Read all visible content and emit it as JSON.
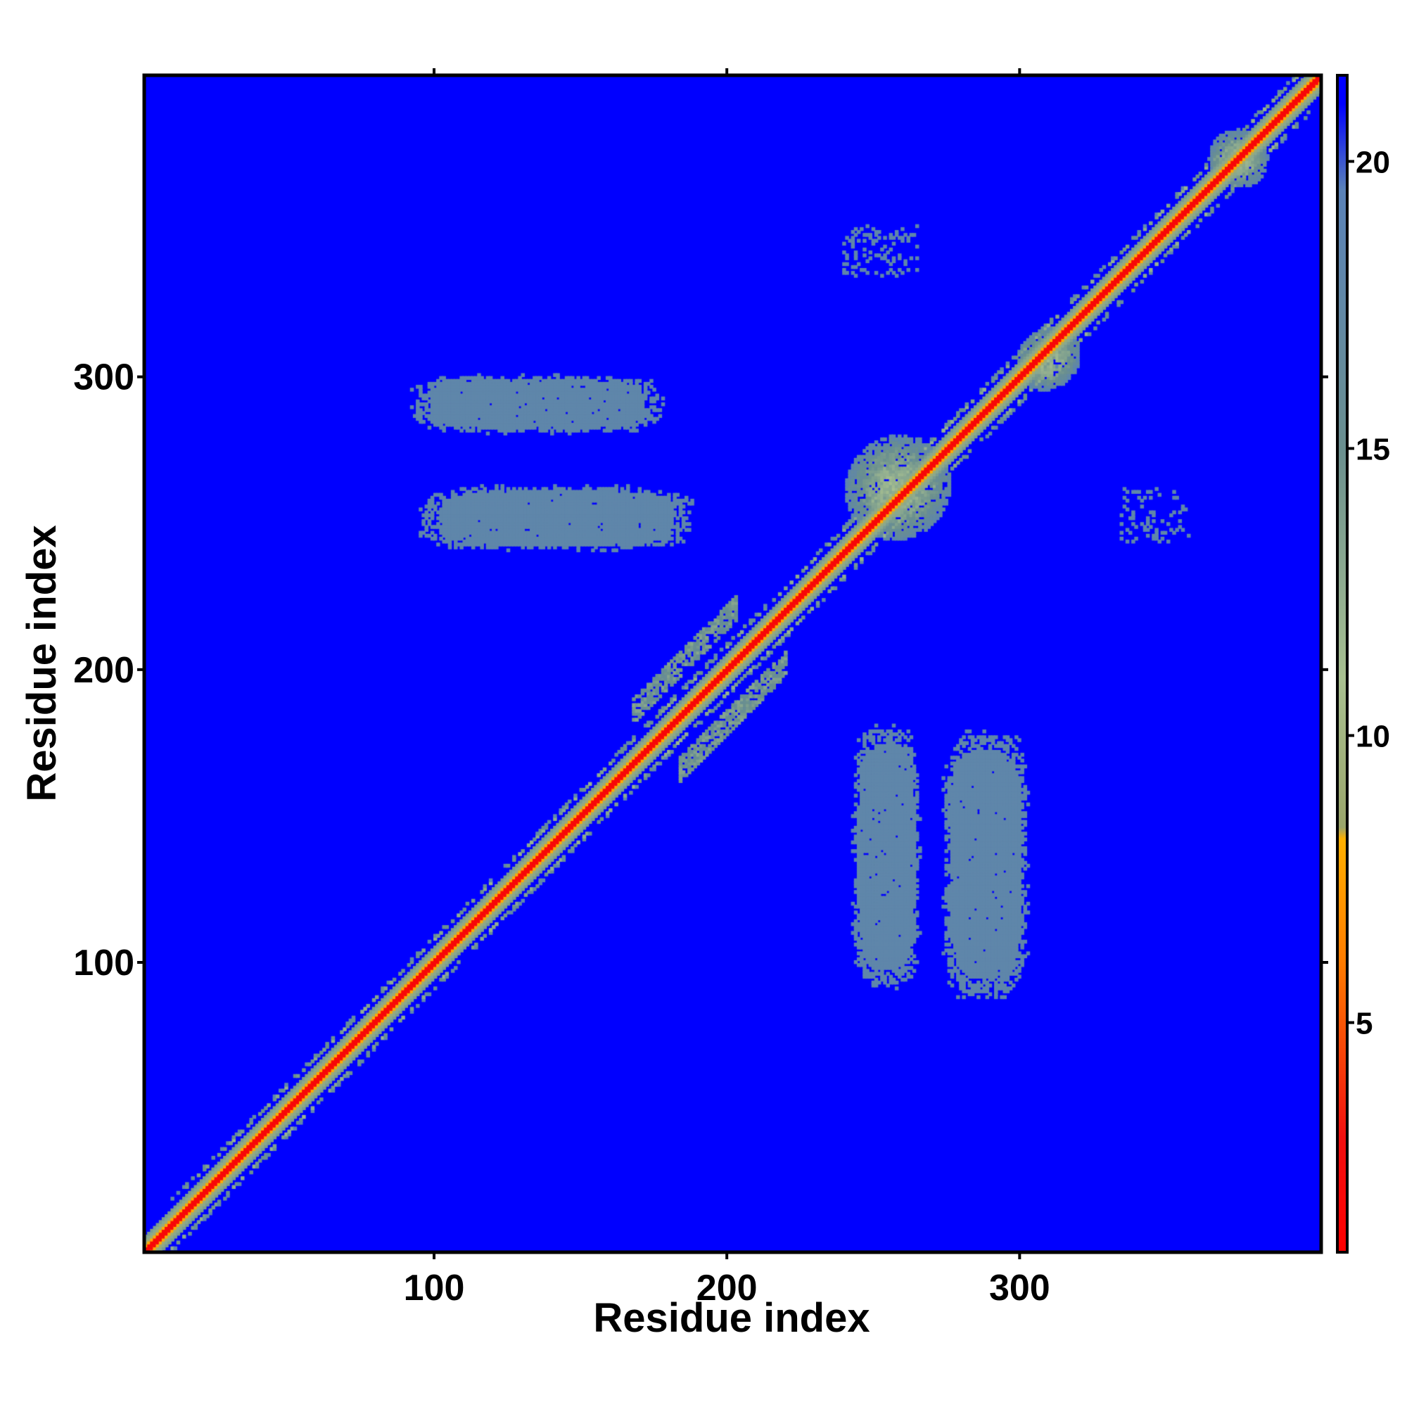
{
  "chart_data": {
    "type": "heatmap",
    "title": "",
    "xlabel": "Residue index",
    "ylabel": "Residue index",
    "xlim": [
      1,
      403
    ],
    "ylim": [
      1,
      403
    ],
    "x_ticks": [
      100,
      200,
      300
    ],
    "y_ticks": [
      100,
      200,
      300
    ],
    "x_tick_labels": [
      "100",
      "200",
      "300"
    ],
    "y_tick_labels": [
      "100",
      "200",
      "300"
    ],
    "grid": false,
    "legend": "colorbar right",
    "colorbar": {
      "min": 1,
      "max": 21.5,
      "ticks": [
        5,
        10,
        15,
        20
      ],
      "tick_labels": [
        "5",
        "10",
        "15",
        "20"
      ],
      "stops": [
        {
          "value": 1,
          "color": "#ff0000"
        },
        {
          "value": 3,
          "color": "#f01010"
        },
        {
          "value": 6,
          "color": "#ff7a00"
        },
        {
          "value": 8.2,
          "color": "#ffb000"
        },
        {
          "value": 8.4,
          "color": "#9aa56b"
        },
        {
          "value": 11,
          "color": "#a8c090"
        },
        {
          "value": 15,
          "color": "#6a8f8f"
        },
        {
          "value": 19.5,
          "color": "#5a82b8"
        },
        {
          "value": 21,
          "color": "#0000ff"
        },
        {
          "value": 21.5,
          "color": "#0000ff"
        }
      ]
    },
    "background_value": 21,
    "background_color": "#0000ff",
    "features": [
      {
        "kind": "diagonal",
        "from": 1,
        "to": 403,
        "core_value": 2,
        "halo_value": 9
      },
      {
        "kind": "diagonal_segment",
        "offset": 8,
        "from": 10,
        "to": 400,
        "value": 12
      },
      {
        "kind": "diagonal_segment",
        "offset": -8,
        "from": 10,
        "to": 400,
        "value": 12
      },
      {
        "kind": "helix_band",
        "x_from": 168,
        "x_to": 203,
        "offset": 18,
        "value": 13
      },
      {
        "kind": "helix_band",
        "x_from": 184,
        "x_to": 220,
        "offset": -18,
        "value": 13
      },
      {
        "kind": "blob",
        "x_from": 241,
        "x_to": 276,
        "y_from": 244,
        "y_to": 281,
        "value": 11
      },
      {
        "kind": "blob",
        "x_from": 300,
        "x_to": 320,
        "y_from": 295,
        "y_to": 318,
        "value": 11
      },
      {
        "kind": "blob",
        "x_from": 365,
        "x_to": 385,
        "y_from": 365,
        "y_to": 385,
        "value": 11
      },
      {
        "kind": "contact_patch",
        "x_from": 95,
        "x_to": 175,
        "y_from": 282,
        "y_to": 300,
        "value": 18
      },
      {
        "kind": "contact_patch",
        "x_from": 98,
        "x_to": 185,
        "y_from": 242,
        "y_to": 262,
        "value": 18
      },
      {
        "kind": "contact_patch",
        "x_from": 244,
        "x_to": 265,
        "y_from": 94,
        "y_to": 178,
        "value": 18
      },
      {
        "kind": "contact_patch",
        "x_from": 275,
        "x_to": 302,
        "y_from": 91,
        "y_to": 176,
        "value": 18
      },
      {
        "kind": "speckle",
        "x_from": 240,
        "x_to": 265,
        "y_from": 335,
        "y_to": 352,
        "value": 18
      },
      {
        "kind": "speckle",
        "x_from": 335,
        "x_to": 358,
        "y_from": 243,
        "y_to": 262,
        "value": 18
      }
    ]
  }
}
